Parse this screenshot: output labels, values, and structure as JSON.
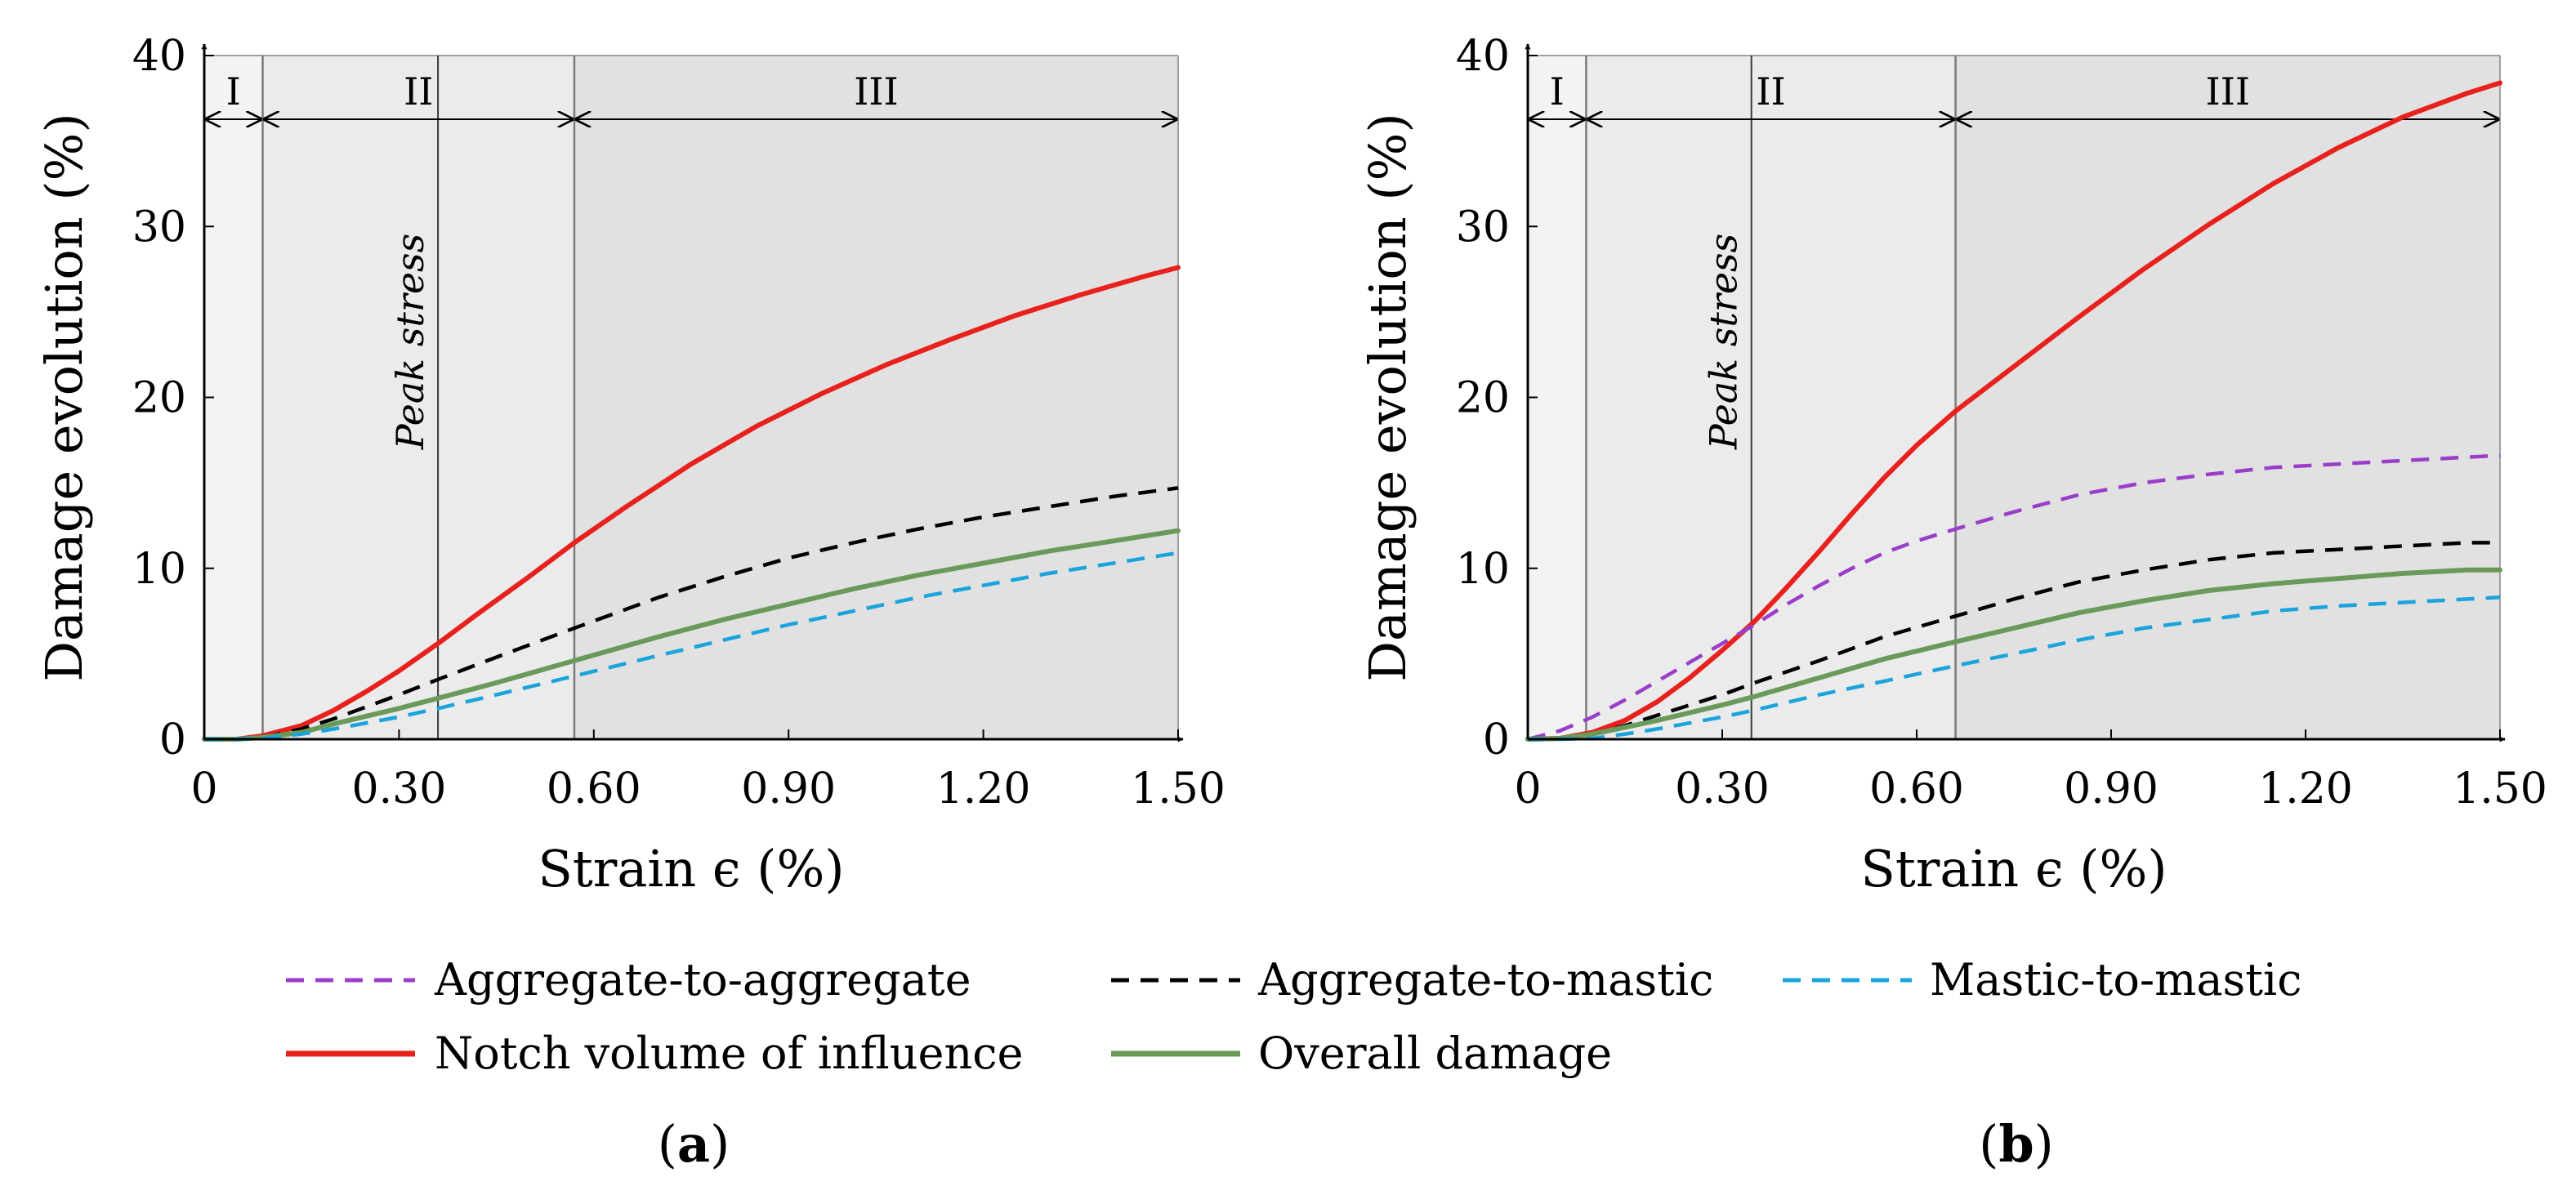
{
  "colors": {
    "agg_agg": "#9a3ec9",
    "agg_mastic": "#000000",
    "mastic_mastic": "#1aa3dc",
    "notch": "#e8211d",
    "overall": "#6a9a5a",
    "region_I": "#f3f3f3",
    "region_II": "#ebebeb",
    "region_III": "#e1e1e1"
  },
  "legend": {
    "agg_agg": "Aggregate-to-aggregate",
    "agg_mastic": "Aggregate-to-mastic",
    "mastic_mastic": "Mastic-to-mastic",
    "notch": "Notch volume of influence",
    "overall": "Overall damage"
  },
  "chart_data": [
    {
      "type": "line",
      "panel_label": "a",
      "xlabel": "Strain ϵ (%)",
      "ylabel": "Damage evolution (%)",
      "xlim": [
        0,
        1.5
      ],
      "ylim": [
        0,
        40
      ],
      "xticks": [
        0,
        0.3,
        0.6,
        0.9,
        1.2,
        1.5
      ],
      "xtick_labels": [
        "0",
        "0.30",
        "0.60",
        "0.90",
        "1.20",
        "1.50"
      ],
      "yticks": [
        0,
        10,
        20,
        30,
        40
      ],
      "ytick_labels": [
        "0",
        "10",
        "20",
        "30",
        "40"
      ],
      "regions": [
        {
          "label": "I",
          "from": 0,
          "to": 0.09
        },
        {
          "label": "II",
          "from": 0.09,
          "to": 0.57
        },
        {
          "label": "III",
          "from": 0.57,
          "to": 1.5
        }
      ],
      "peak_stress": {
        "x": 0.36,
        "label": "Peak stress"
      },
      "series": [
        {
          "key": "notch",
          "name": "Notch volume of influence",
          "dash": "solid",
          "x": [
            0,
            0.05,
            0.09,
            0.15,
            0.2,
            0.25,
            0.3,
            0.36,
            0.42,
            0.5,
            0.57,
            0.65,
            0.75,
            0.85,
            0.95,
            1.05,
            1.15,
            1.25,
            1.35,
            1.45,
            1.5
          ],
          "y": [
            0,
            0,
            0.2,
            0.8,
            1.7,
            2.8,
            4.0,
            5.6,
            7.3,
            9.5,
            11.5,
            13.6,
            16.1,
            18.3,
            20.2,
            21.9,
            23.4,
            24.8,
            26.0,
            27.1,
            27.6
          ]
        },
        {
          "key": "agg_mastic",
          "name": "Aggregate-to-mastic",
          "dash": "dash",
          "x": [
            0,
            0.05,
            0.09,
            0.15,
            0.2,
            0.3,
            0.36,
            0.45,
            0.57,
            0.7,
            0.8,
            0.9,
            1.0,
            1.1,
            1.2,
            1.3,
            1.4,
            1.5
          ],
          "y": [
            0,
            0,
            0.1,
            0.6,
            1.2,
            2.6,
            3.5,
            4.8,
            6.5,
            8.3,
            9.5,
            10.6,
            11.5,
            12.3,
            13.0,
            13.6,
            14.2,
            14.7
          ]
        },
        {
          "key": "overall",
          "name": "Overall damage",
          "dash": "solid",
          "x": [
            0,
            0.05,
            0.09,
            0.15,
            0.2,
            0.3,
            0.36,
            0.45,
            0.57,
            0.7,
            0.8,
            0.9,
            1.0,
            1.1,
            1.2,
            1.3,
            1.4,
            1.5
          ],
          "y": [
            0,
            0,
            0.1,
            0.4,
            0.9,
            1.8,
            2.4,
            3.3,
            4.6,
            6.0,
            7.0,
            7.9,
            8.8,
            9.6,
            10.3,
            11.0,
            11.6,
            12.2
          ]
        },
        {
          "key": "mastic_mastic",
          "name": "Mastic-to-mastic",
          "dash": "dash",
          "x": [
            0,
            0.05,
            0.09,
            0.15,
            0.2,
            0.3,
            0.36,
            0.45,
            0.57,
            0.7,
            0.8,
            0.9,
            1.0,
            1.1,
            1.2,
            1.3,
            1.4,
            1.5
          ],
          "y": [
            0,
            0,
            0.05,
            0.3,
            0.6,
            1.3,
            1.8,
            2.6,
            3.7,
            4.9,
            5.8,
            6.7,
            7.5,
            8.3,
            9.0,
            9.7,
            10.3,
            10.9
          ]
        }
      ]
    },
    {
      "type": "line",
      "panel_label": "b",
      "xlabel": "Strain ϵ (%)",
      "ylabel": "Damage evolution (%)",
      "xlim": [
        0,
        1.5
      ],
      "ylim": [
        0,
        40
      ],
      "xticks": [
        0,
        0.3,
        0.6,
        0.9,
        1.2,
        1.5
      ],
      "xtick_labels": [
        "0",
        "0.30",
        "0.60",
        "0.90",
        "1.20",
        "1.50"
      ],
      "yticks": [
        0,
        10,
        20,
        30,
        40
      ],
      "ytick_labels": [
        "0",
        "10",
        "20",
        "30",
        "40"
      ],
      "regions": [
        {
          "label": "I",
          "from": 0,
          "to": 0.09
        },
        {
          "label": "II",
          "from": 0.09,
          "to": 0.66
        },
        {
          "label": "III",
          "from": 0.66,
          "to": 1.5
        }
      ],
      "peak_stress": {
        "x": 0.345,
        "label": "Peak stress"
      },
      "series": [
        {
          "key": "notch",
          "name": "Notch volume of influence",
          "dash": "solid",
          "x": [
            0,
            0.05,
            0.1,
            0.15,
            0.2,
            0.25,
            0.3,
            0.35,
            0.4,
            0.45,
            0.5,
            0.55,
            0.6,
            0.66,
            0.75,
            0.85,
            0.95,
            1.05,
            1.15,
            1.25,
            1.35,
            1.45,
            1.5
          ],
          "y": [
            0,
            0.05,
            0.4,
            1.1,
            2.2,
            3.6,
            5.2,
            6.9,
            8.9,
            11.0,
            13.2,
            15.3,
            17.2,
            19.2,
            21.8,
            24.7,
            27.5,
            30.1,
            32.5,
            34.6,
            36.4,
            37.8,
            38.4
          ]
        },
        {
          "key": "agg_agg",
          "name": "Aggregate-to-aggregate",
          "dash": "dash",
          "x": [
            0,
            0.05,
            0.1,
            0.15,
            0.2,
            0.25,
            0.3,
            0.35,
            0.4,
            0.45,
            0.5,
            0.55,
            0.6,
            0.66,
            0.75,
            0.85,
            0.95,
            1.05,
            1.15,
            1.25,
            1.35,
            1.45,
            1.5
          ],
          "y": [
            0,
            0.5,
            1.3,
            2.3,
            3.4,
            4.5,
            5.6,
            6.7,
            7.9,
            9.0,
            10.0,
            10.9,
            11.6,
            12.3,
            13.3,
            14.3,
            15.0,
            15.5,
            15.9,
            16.1,
            16.3,
            16.5,
            16.6
          ]
        },
        {
          "key": "agg_mastic",
          "name": "Aggregate-to-mastic",
          "dash": "dash",
          "x": [
            0,
            0.05,
            0.1,
            0.15,
            0.2,
            0.3,
            0.35,
            0.45,
            0.55,
            0.66,
            0.75,
            0.85,
            0.95,
            1.05,
            1.15,
            1.25,
            1.35,
            1.45,
            1.5
          ],
          "y": [
            0,
            0.05,
            0.3,
            0.8,
            1.4,
            2.6,
            3.3,
            4.6,
            6.0,
            7.2,
            8.2,
            9.2,
            9.9,
            10.5,
            10.9,
            11.1,
            11.3,
            11.5,
            11.5
          ]
        },
        {
          "key": "overall",
          "name": "Overall damage",
          "dash": "solid",
          "x": [
            0,
            0.05,
            0.1,
            0.15,
            0.2,
            0.3,
            0.35,
            0.45,
            0.55,
            0.66,
            0.75,
            0.85,
            0.95,
            1.05,
            1.15,
            1.25,
            1.35,
            1.45,
            1.5
          ],
          "y": [
            0,
            0.05,
            0.3,
            0.7,
            1.1,
            2.0,
            2.5,
            3.6,
            4.7,
            5.7,
            6.5,
            7.4,
            8.1,
            8.7,
            9.1,
            9.4,
            9.7,
            9.9,
            9.9
          ]
        },
        {
          "key": "mastic_mastic",
          "name": "Mastic-to-mastic",
          "dash": "dash",
          "x": [
            0,
            0.05,
            0.1,
            0.15,
            0.2,
            0.3,
            0.35,
            0.45,
            0.55,
            0.66,
            0.75,
            0.85,
            0.95,
            1.05,
            1.15,
            1.25,
            1.35,
            1.45,
            1.5
          ],
          "y": [
            0,
            0,
            0.05,
            0.3,
            0.6,
            1.3,
            1.7,
            2.6,
            3.4,
            4.3,
            5.0,
            5.8,
            6.5,
            7.0,
            7.5,
            7.8,
            8.0,
            8.2,
            8.3
          ]
        }
      ]
    }
  ]
}
